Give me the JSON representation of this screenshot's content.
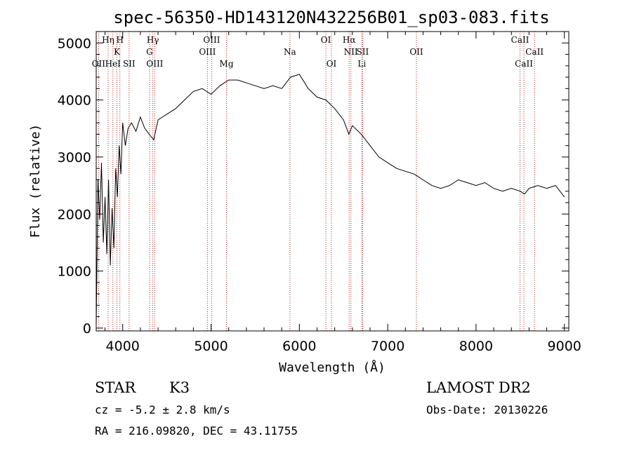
{
  "chart_data": {
    "type": "line",
    "title": "spec-56350-HD143120N432256B01_sp03-083.fits",
    "xlabel": "Wavelength (Å)",
    "ylabel": "Flux (relative)",
    "xlim": [
      3700,
      9050
    ],
    "ylim": [
      -50,
      5200
    ],
    "x_ticks": [
      4000,
      5000,
      6000,
      7000,
      8000,
      9000
    ],
    "y_ticks": [
      0,
      1000,
      2000,
      3000,
      4000,
      5000
    ],
    "grid": false,
    "line_color": "#000000",
    "marker_color": "#b22222",
    "series": [
      {
        "x": [
          3700,
          3720,
          3740,
          3760,
          3780,
          3800,
          3820,
          3840,
          3860,
          3880,
          3900,
          3920,
          3940,
          3960,
          3980,
          4000,
          4030,
          4060,
          4100,
          4150,
          4200,
          4250,
          4300,
          4350,
          4400,
          4450,
          4500,
          4600,
          4700,
          4800,
          4900,
          5000,
          5100,
          5200,
          5300,
          5400,
          5500,
          5600,
          5700,
          5800,
          5900,
          6000,
          6100,
          6200,
          6300,
          6400,
          6500,
          6560,
          6600,
          6700,
          6800,
          6900,
          7000,
          7100,
          7200,
          7300,
          7400,
          7500,
          7600,
          7700,
          7800,
          7900,
          8000,
          8100,
          8200,
          8300,
          8400,
          8500,
          8550,
          8600,
          8700,
          8800,
          8900,
          8950,
          9000
        ],
        "y": [
          50,
          2600,
          1900,
          2900,
          1500,
          2300,
          1300,
          2600,
          1100,
          2100,
          1400,
          2800,
          2300,
          3200,
          2700,
          3600,
          3200,
          3500,
          3600,
          3450,
          3700,
          3500,
          3400,
          3300,
          3650,
          3700,
          3750,
          3850,
          4000,
          4150,
          4200,
          4100,
          4250,
          4350,
          4350,
          4300,
          4250,
          4200,
          4250,
          4200,
          4400,
          4450,
          4200,
          4050,
          4000,
          3850,
          3650,
          3400,
          3550,
          3400,
          3200,
          3000,
          2900,
          2800,
          2750,
          2700,
          2600,
          2500,
          2450,
          2500,
          2600,
          2550,
          2500,
          2550,
          2450,
          2400,
          2450,
          2400,
          2350,
          2450,
          2500,
          2450,
          2500,
          2400,
          2300
        ]
      }
    ],
    "line_markers": [
      {
        "label": "OII",
        "wavelength": 3727,
        "row": 3
      },
      {
        "label": "Hη",
        "wavelength": 3835,
        "row": 1
      },
      {
        "label": "HeI",
        "wavelength": 3889,
        "row": 3
      },
      {
        "label": "K",
        "wavelength": 3934,
        "row": 2
      },
      {
        "label": "H",
        "wavelength": 3968,
        "row": 1
      },
      {
        "label": "SII",
        "wavelength": 4072,
        "row": 3
      },
      {
        "label": "Hγ",
        "wavelength": 4341,
        "row": 1
      },
      {
        "label": "G",
        "wavelength": 4304,
        "row": 2
      },
      {
        "label": "OIII",
        "wavelength": 4363,
        "row": 3
      },
      {
        "label": "OIII",
        "wavelength": 5007,
        "row": 1
      },
      {
        "label": "OIII",
        "wavelength": 4959,
        "row": 2
      },
      {
        "label": "Mg",
        "wavelength": 5175,
        "row": 3
      },
      {
        "label": "Na",
        "wavelength": 5893,
        "row": 2
      },
      {
        "label": "OI",
        "wavelength": 6300,
        "row": 1
      },
      {
        "label": "OI",
        "wavelength": 6363,
        "row": 3
      },
      {
        "label": "Hα",
        "wavelength": 6563,
        "row": 1
      },
      {
        "label": "NII",
        "wavelength": 6583,
        "row": 2
      },
      {
        "label": "SII",
        "wavelength": 6716,
        "row": 2
      },
      {
        "label": "Li",
        "wavelength": 6707,
        "row": 3
      },
      {
        "label": "OII",
        "wavelength": 7325,
        "row": 2
      },
      {
        "label": "CaII",
        "wavelength": 8498,
        "row": 1
      },
      {
        "label": "CaII",
        "wavelength": 8662,
        "row": 2
      },
      {
        "label": "CaII",
        "wavelength": 8542,
        "row": 3
      }
    ]
  },
  "info": {
    "class": "STAR",
    "subclass": "K3",
    "survey": "LAMOST DR2",
    "cz": "cz = -5.2 ± 2.8 km/s",
    "obs_date": "Obs-Date: 20130226",
    "coords": "RA = 216.09820, DEC =  43.11755"
  }
}
